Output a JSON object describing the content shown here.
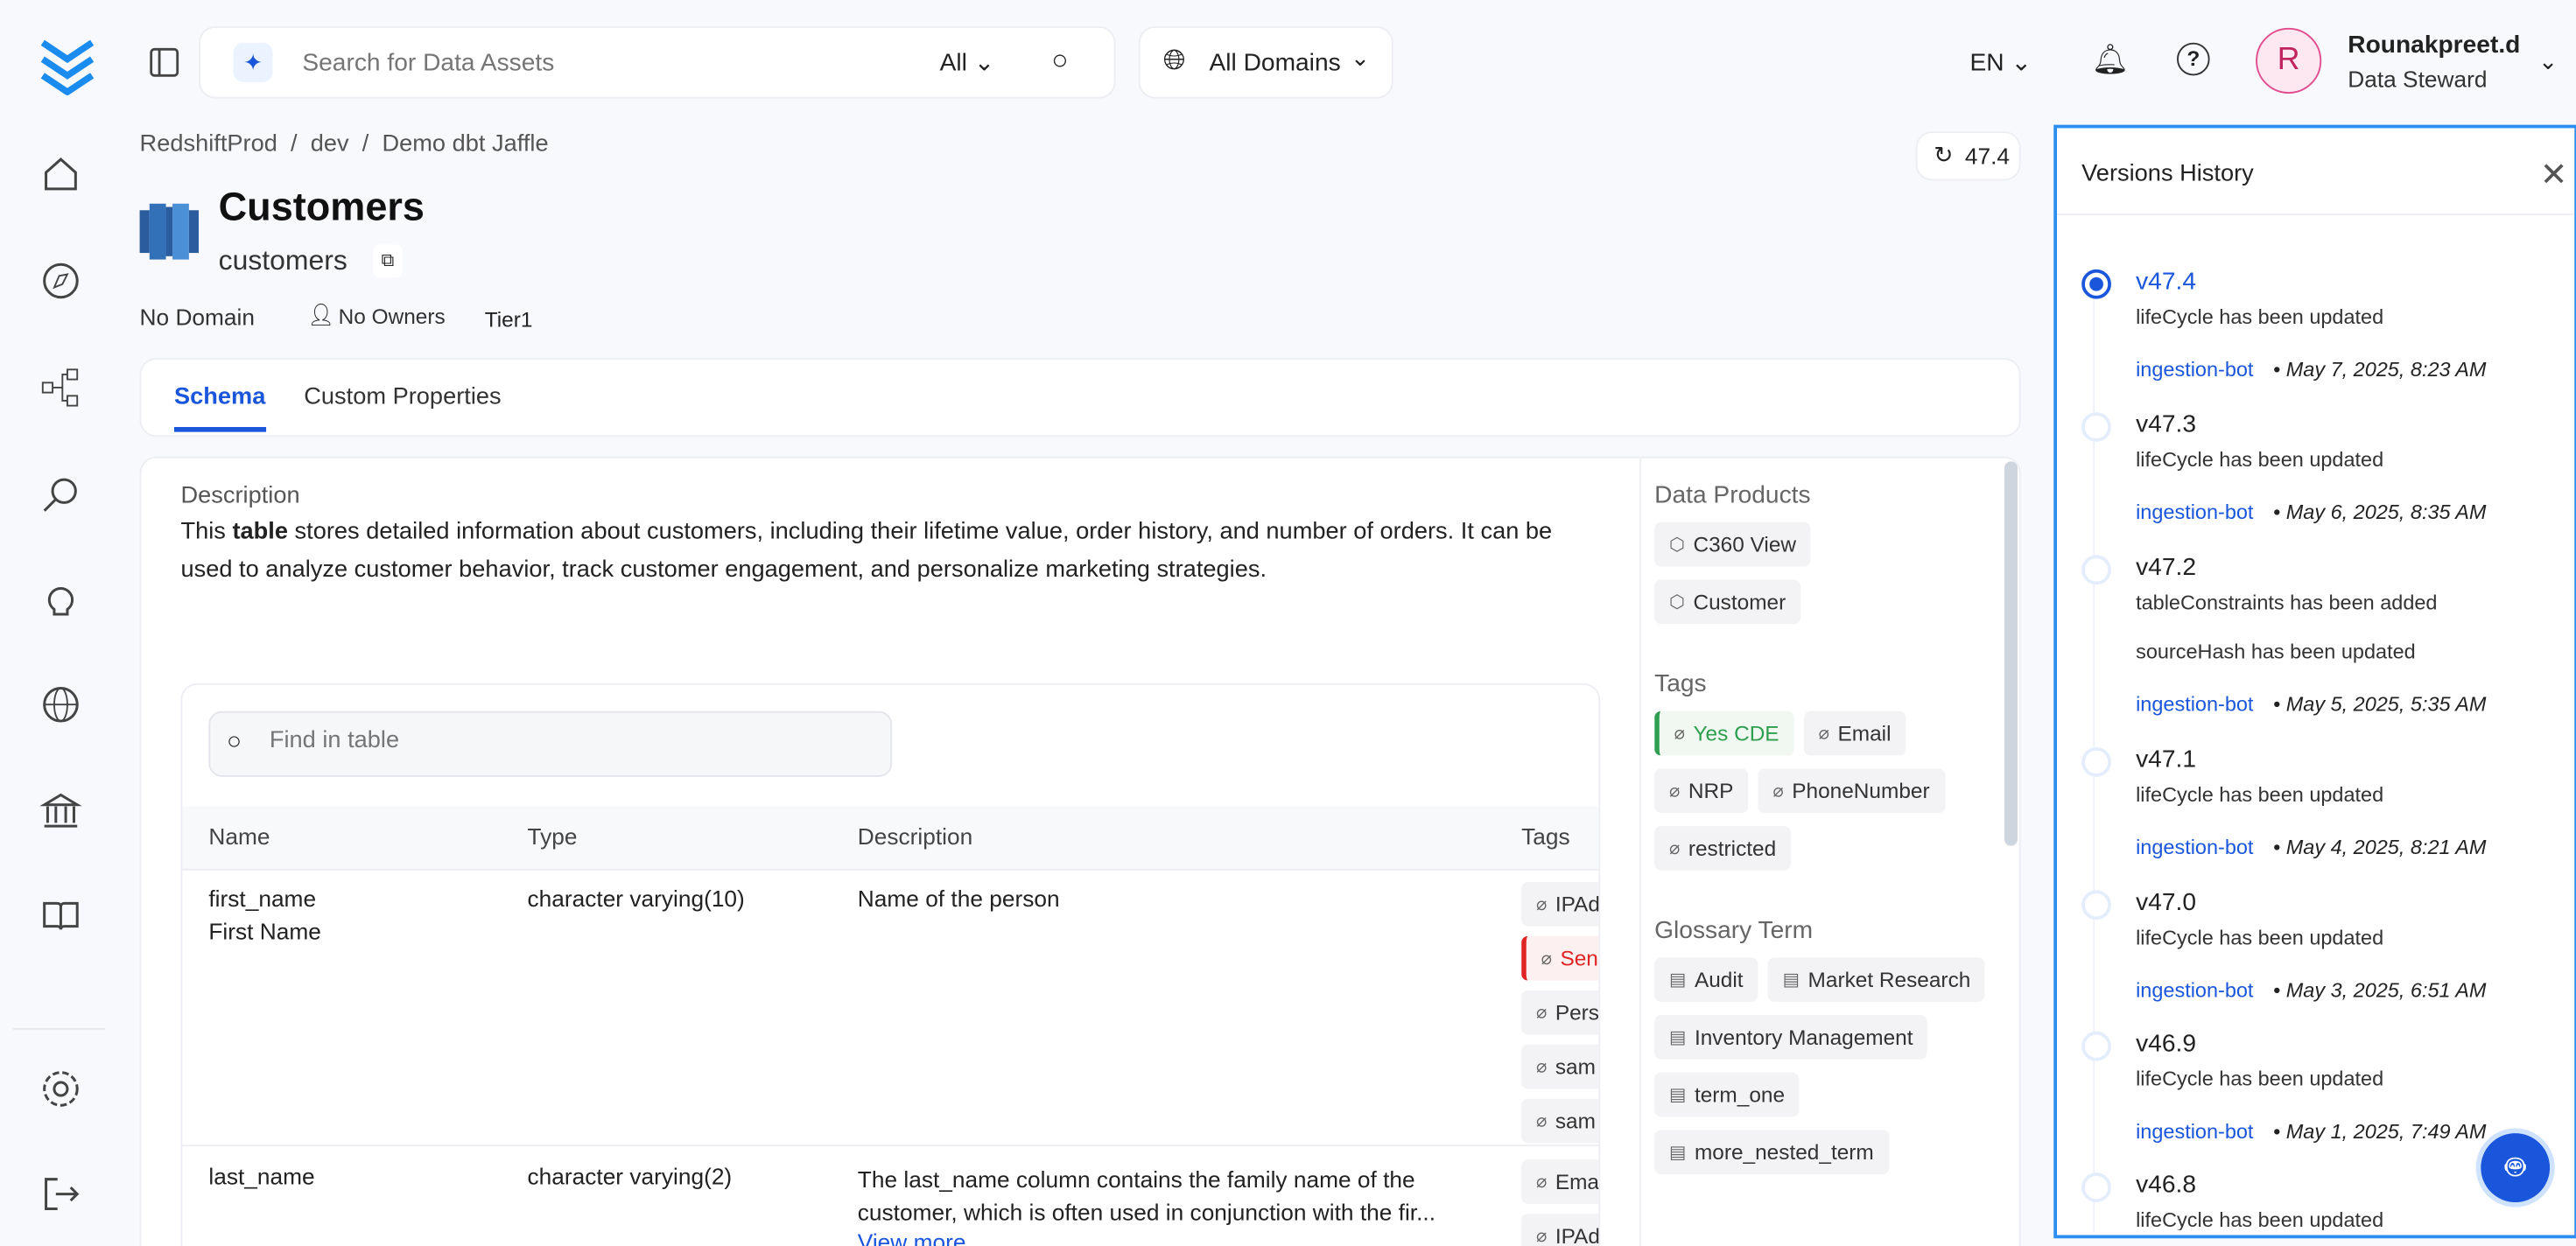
{
  "header": {
    "search_placeholder": "Search for Data Assets",
    "search_scope": "All",
    "domain_select": "All Domains",
    "language": "EN",
    "user_name": "Rounakpreet.d",
    "user_role": "Data Steward",
    "avatar_initial": "R"
  },
  "sidebar": {
    "items": [
      {
        "icon": "home-icon"
      },
      {
        "icon": "explore-icon"
      },
      {
        "icon": "lineage-icon"
      },
      {
        "icon": "observability-icon"
      },
      {
        "icon": "insights-icon"
      },
      {
        "icon": "domains-icon"
      },
      {
        "icon": "governance-icon"
      },
      {
        "icon": "glossary-icon"
      },
      {
        "icon": "settings-icon"
      },
      {
        "icon": "logout-icon"
      }
    ]
  },
  "breadcrumb": [
    "RedshiftProd",
    "dev",
    "Demo dbt Jaffle"
  ],
  "entity": {
    "title": "Customers",
    "name": "customers",
    "domain": "No Domain",
    "owners": "No Owners",
    "tier": "Tier1",
    "version": "47.4"
  },
  "tabs": [
    "Schema",
    "Custom Properties"
  ],
  "description": {
    "label": "Description",
    "pre": "This ",
    "bold": "table",
    "post": " stores detailed information about customers, including their lifetime value, order history, and number of orders. It can be used to analyze customer behavior, track customer engagement, and personalize marketing strategies."
  },
  "table": {
    "search_placeholder": "Find in table",
    "columns": [
      "Name",
      "Type",
      "Description",
      "Tags"
    ],
    "rows": [
      {
        "name": "first_name",
        "display": "First Name",
        "type": "character varying(10)",
        "description": "Name of the person",
        "tags": [
          "IPAd",
          "Sen",
          "Pers",
          "sam",
          "sam"
        ]
      },
      {
        "name": "last_name",
        "display": "",
        "type": "character varying(2)",
        "description": "The last_name column contains the family name of the customer, which is often used in conjunction with the fir...",
        "view_more": "View more",
        "tags": [
          "Ema",
          "IPAd"
        ]
      }
    ]
  },
  "right_panel": {
    "data_products_label": "Data Products",
    "data_products": [
      "C360 View",
      "Customer"
    ],
    "tags_label": "Tags",
    "tags": [
      "Yes CDE",
      "Email",
      "NRP",
      "PhoneNumber",
      "restricted"
    ],
    "glossary_label": "Glossary Term",
    "glossary": [
      "Audit",
      "Market Research",
      "Inventory Management",
      "term_one",
      "more_nested_term"
    ]
  },
  "versions": {
    "title": "Versions History",
    "items": [
      {
        "version": "v47.4",
        "changes": [
          "lifeCycle has been updated"
        ],
        "author": "ingestion-bot",
        "date": "May 7, 2025, 8:23 AM",
        "selected": true
      },
      {
        "version": "v47.3",
        "changes": [
          "lifeCycle has been updated"
        ],
        "author": "ingestion-bot",
        "date": "May 6, 2025, 8:35 AM"
      },
      {
        "version": "v47.2",
        "changes": [
          "tableConstraints has been added",
          "sourceHash has been updated"
        ],
        "author": "ingestion-bot",
        "date": "May 5, 2025, 5:35 AM"
      },
      {
        "version": "v47.1",
        "changes": [
          "lifeCycle has been updated"
        ],
        "author": "ingestion-bot",
        "date": "May 4, 2025, 8:21 AM"
      },
      {
        "version": "v47.0",
        "changes": [
          "lifeCycle has been updated"
        ],
        "author": "ingestion-bot",
        "date": "May 3, 2025, 6:51 AM"
      },
      {
        "version": "v46.9",
        "changes": [
          "lifeCycle has been updated"
        ],
        "author": "ingestion-bot",
        "date": "May 1, 2025, 7:49 AM"
      },
      {
        "version": "v46.8",
        "changes": [
          "lifeCycle has been updated"
        ]
      }
    ]
  },
  "colors": {
    "accent": "#1a56db",
    "cde": "#2e9e4f",
    "sensitive": "#e02424",
    "panel_border": "#2b8ef0"
  }
}
